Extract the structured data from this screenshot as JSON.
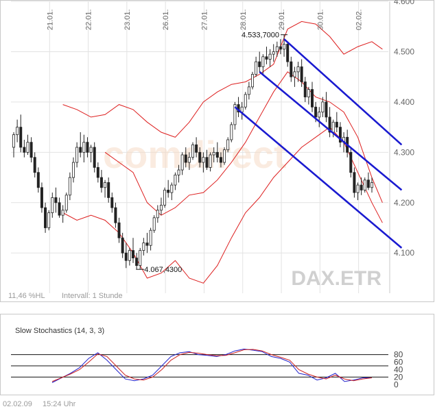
{
  "chart_data": [
    {
      "type": "candlestick",
      "symbol_watermark": "DAX.ETR",
      "brand_watermark": "comdirect",
      "x_tick_labels": [
        "21.01.",
        "22.01.",
        "23.01.",
        "26.01.",
        "27.01.",
        "28.01.",
        "29.01.",
        "30.01.",
        "02.02."
      ],
      "y_tick_labels": [
        "4.600",
        "4.500",
        "4.400",
        "4.300",
        "4.200",
        "4.100"
      ],
      "ylim": [
        4020,
        4600
      ],
      "high_annotation": {
        "label": "4.533,7000",
        "value": 4533.7,
        "index": 77
      },
      "low_annotation": {
        "label": "4.067,4300",
        "value": 4067.43,
        "index": 36
      },
      "footer_left": "11,46 %HL",
      "footer_interval": "Intervall: 1 Stunde",
      "ohlc": [
        [
          4310,
          4340,
          4290,
          4335
        ],
        [
          4335,
          4365,
          4320,
          4350
        ],
        [
          4350,
          4375,
          4300,
          4310
        ],
        [
          4310,
          4325,
          4290,
          4300
        ],
        [
          4300,
          4335,
          4295,
          4320
        ],
        [
          4320,
          4330,
          4280,
          4290
        ],
        [
          4290,
          4300,
          4250,
          4260
        ],
        [
          4260,
          4270,
          4220,
          4230
        ],
        [
          4230,
          4240,
          4180,
          4190
        ],
        [
          4190,
          4200,
          4140,
          4150
        ],
        [
          4150,
          4185,
          4145,
          4180
        ],
        [
          4180,
          4220,
          4170,
          4210
        ],
        [
          4210,
          4230,
          4180,
          4200
        ],
        [
          4200,
          4210,
          4170,
          4175
        ],
        [
          4175,
          4195,
          4160,
          4185
        ],
        [
          4185,
          4220,
          4180,
          4215
        ],
        [
          4215,
          4260,
          4205,
          4250
        ],
        [
          4250,
          4290,
          4240,
          4280
        ],
        [
          4280,
          4320,
          4270,
          4310
        ],
        [
          4310,
          4340,
          4290,
          4300
        ],
        [
          4300,
          4335,
          4280,
          4320
        ],
        [
          4320,
          4330,
          4290,
          4300
        ],
        [
          4300,
          4315,
          4280,
          4310
        ],
        [
          4310,
          4320,
          4260,
          4270
        ],
        [
          4270,
          4280,
          4240,
          4250
        ],
        [
          4250,
          4265,
          4220,
          4230
        ],
        [
          4230,
          4245,
          4210,
          4240
        ],
        [
          4240,
          4250,
          4200,
          4210
        ],
        [
          4210,
          4220,
          4180,
          4190
        ],
        [
          4190,
          4200,
          4150,
          4160
        ],
        [
          4160,
          4170,
          4120,
          4130
        ],
        [
          4130,
          4140,
          4090,
          4100
        ],
        [
          4100,
          4120,
          4070,
          4085
        ],
        [
          4085,
          4110,
          4075,
          4105
        ],
        [
          4105,
          4130,
          4080,
          4090
        ],
        [
          4090,
          4100,
          4068,
          4075
        ],
        [
          4075,
          4110,
          4067,
          4105
        ],
        [
          4105,
          4130,
          4095,
          4120
        ],
        [
          4120,
          4140,
          4100,
          4115
        ],
        [
          4115,
          4150,
          4105,
          4145
        ],
        [
          4145,
          4175,
          4140,
          4170
        ],
        [
          4170,
          4195,
          4160,
          4185
        ],
        [
          4185,
          4210,
          4175,
          4195
        ],
        [
          4195,
          4230,
          4190,
          4225
        ],
        [
          4225,
          4245,
          4210,
          4220
        ],
        [
          4220,
          4240,
          4205,
          4235
        ],
        [
          4235,
          4260,
          4225,
          4255
        ],
        [
          4255,
          4275,
          4240,
          4265
        ],
        [
          4265,
          4300,
          4255,
          4295
        ],
        [
          4295,
          4310,
          4270,
          4280
        ],
        [
          4280,
          4300,
          4265,
          4290
        ],
        [
          4290,
          4320,
          4285,
          4315
        ],
        [
          4315,
          4330,
          4290,
          4300
        ],
        [
          4300,
          4310,
          4270,
          4280
        ],
        [
          4280,
          4300,
          4260,
          4290
        ],
        [
          4290,
          4305,
          4265,
          4270
        ],
        [
          4270,
          4300,
          4262,
          4295
        ],
        [
          4295,
          4310,
          4280,
          4300
        ],
        [
          4300,
          4320,
          4280,
          4290
        ],
        [
          4290,
          4300,
          4270,
          4280
        ],
        [
          4280,
          4310,
          4275,
          4305
        ],
        [
          4305,
          4330,
          4300,
          4325
        ],
        [
          4325,
          4360,
          4320,
          4355
        ],
        [
          4355,
          4400,
          4345,
          4395
        ],
        [
          4395,
          4410,
          4370,
          4380
        ],
        [
          4380,
          4400,
          4365,
          4390
        ],
        [
          4390,
          4420,
          4385,
          4415
        ],
        [
          4415,
          4440,
          4405,
          4430
        ],
        [
          4430,
          4460,
          4425,
          4455
        ],
        [
          4455,
          4490,
          4450,
          4480
        ],
        [
          4480,
          4500,
          4460,
          4470
        ],
        [
          4470,
          4495,
          4455,
          4490
        ],
        [
          4490,
          4510,
          4475,
          4485
        ],
        [
          4485,
          4505,
          4470,
          4495
        ],
        [
          4495,
          4515,
          4480,
          4500
        ],
        [
          4500,
          4520,
          4490,
          4510
        ],
        [
          4510,
          4525,
          4495,
          4505
        ],
        [
          4505,
          4533.7,
          4490,
          4515
        ],
        [
          4515,
          4520,
          4470,
          4480
        ],
        [
          4480,
          4490,
          4440,
          4450
        ],
        [
          4450,
          4470,
          4430,
          4460
        ],
        [
          4460,
          4480,
          4440,
          4470
        ],
        [
          4470,
          4485,
          4430,
          4440
        ],
        [
          4440,
          4450,
          4400,
          4410
        ],
        [
          4410,
          4430,
          4395,
          4425
        ],
        [
          4425,
          4440,
          4380,
          4390
        ],
        [
          4390,
          4400,
          4360,
          4370
        ],
        [
          4370,
          4390,
          4350,
          4380
        ],
        [
          4380,
          4410,
          4370,
          4400
        ],
        [
          4400,
          4420,
          4360,
          4370
        ],
        [
          4370,
          4390,
          4330,
          4340
        ],
        [
          4340,
          4365,
          4330,
          4360
        ],
        [
          4360,
          4380,
          4340,
          4350
        ],
        [
          4350,
          4360,
          4310,
          4320
        ],
        [
          4320,
          4340,
          4300,
          4330
        ],
        [
          4330,
          4345,
          4290,
          4300
        ],
        [
          4300,
          4310,
          4250,
          4260
        ],
        [
          4260,
          4270,
          4210,
          4220
        ],
        [
          4220,
          4240,
          4205,
          4235
        ],
        [
          4235,
          4250,
          4215,
          4225
        ],
        [
          4225,
          4250,
          4220,
          4245
        ],
        [
          4245,
          4260,
          4225,
          4230
        ],
        [
          4230,
          4250,
          4220,
          4240
        ]
      ],
      "bollinger_upper": [
        [
          14,
          4395
        ],
        [
          18,
          4385
        ],
        [
          22,
          4370
        ],
        [
          26,
          4375
        ],
        [
          30,
          4395
        ],
        [
          34,
          4385
        ],
        [
          38,
          4360
        ],
        [
          42,
          4340
        ],
        [
          46,
          4330
        ],
        [
          50,
          4360
        ],
        [
          54,
          4400
        ],
        [
          58,
          4420
        ],
        [
          62,
          4435
        ],
        [
          66,
          4440
        ],
        [
          70,
          4455
        ],
        [
          74,
          4475
        ],
        [
          78,
          4545
        ],
        [
          82,
          4560
        ],
        [
          86,
          4555
        ],
        [
          90,
          4530
        ],
        [
          94,
          4495
        ],
        [
          98,
          4510
        ],
        [
          102,
          4520
        ],
        [
          105,
          4505
        ]
      ],
      "bollinger_lower": [
        [
          14,
          4180
        ],
        [
          18,
          4165
        ],
        [
          22,
          4175
        ],
        [
          26,
          4165
        ],
        [
          30,
          4140
        ],
        [
          34,
          4100
        ],
        [
          38,
          4050
        ],
        [
          42,
          4060
        ],
        [
          46,
          4085
        ],
        [
          50,
          4050
        ],
        [
          54,
          4040
        ],
        [
          58,
          4075
        ],
        [
          62,
          4130
        ],
        [
          66,
          4180
        ],
        [
          70,
          4210
        ],
        [
          74,
          4250
        ],
        [
          78,
          4280
        ],
        [
          82,
          4310
        ],
        [
          86,
          4330
        ],
        [
          90,
          4350
        ],
        [
          94,
          4320
        ],
        [
          98,
          4260
        ],
        [
          102,
          4200
        ],
        [
          105,
          4160
        ]
      ],
      "bollinger_middle": [
        [
          26,
          4300
        ],
        [
          30,
          4280
        ],
        [
          34,
          4260
        ],
        [
          38,
          4200
        ],
        [
          42,
          4175
        ],
        [
          46,
          4190
        ],
        [
          50,
          4215
        ],
        [
          54,
          4220
        ],
        [
          58,
          4245
        ],
        [
          62,
          4280
        ],
        [
          66,
          4320
        ],
        [
          70,
          4370
        ],
        [
          74,
          4420
        ],
        [
          78,
          4460
        ],
        [
          82,
          4440
        ],
        [
          86,
          4410
        ],
        [
          90,
          4400
        ],
        [
          94,
          4380
        ],
        [
          98,
          4330
        ],
        [
          102,
          4250
        ],
        [
          105,
          4200
        ]
      ],
      "trend_channel": [
        {
          "from": [
            63,
            4390
          ],
          "to": [
            105,
            4110
          ]
        },
        {
          "from": [
            70,
            4460
          ],
          "to": [
            105,
            4225
          ]
        },
        {
          "from": [
            77,
            4525
          ],
          "to": [
            105,
            4315
          ]
        }
      ]
    },
    {
      "type": "line",
      "title": "Slow Stochastics (14, 3, 3)",
      "y_tick_labels": [
        "80",
        "60",
        "40",
        "20",
        "0"
      ],
      "ylim": [
        -5,
        105
      ],
      "reference_lines": [
        80,
        50,
        20
      ],
      "series": [
        {
          "color": "#2020cc",
          "points": [
            [
              12,
              5
            ],
            [
              20,
              30
            ],
            [
              24,
              45
            ],
            [
              28,
              70
            ],
            [
              32,
              85
            ],
            [
              36,
              65
            ],
            [
              40,
              40
            ],
            [
              44,
              15
            ],
            [
              48,
              10
            ],
            [
              52,
              15
            ],
            [
              56,
              25
            ],
            [
              60,
              50
            ],
            [
              64,
              75
            ],
            [
              68,
              85
            ],
            [
              72,
              88
            ],
            [
              76,
              80
            ],
            [
              80,
              78
            ],
            [
              84,
              75
            ],
            [
              88,
              80
            ],
            [
              92,
              90
            ],
            [
              96,
              95
            ],
            [
              100,
              92
            ],
            [
              104,
              88
            ],
            [
              108,
              75
            ],
            [
              112,
              70
            ],
            [
              116,
              60
            ],
            [
              120,
              30
            ],
            [
              124,
              25
            ],
            [
              128,
              12
            ],
            [
              132,
              18
            ],
            [
              136,
              30
            ],
            [
              140,
              8
            ],
            [
              144,
              12
            ],
            [
              148,
              18
            ],
            [
              152,
              18
            ]
          ]
        },
        {
          "color": "#cc2020",
          "points": [
            [
              12,
              8
            ],
            [
              20,
              28
            ],
            [
              24,
              40
            ],
            [
              28,
              60
            ],
            [
              32,
              82
            ],
            [
              36,
              75
            ],
            [
              40,
              50
            ],
            [
              44,
              25
            ],
            [
              48,
              15
            ],
            [
              52,
              12
            ],
            [
              56,
              20
            ],
            [
              60,
              40
            ],
            [
              64,
              65
            ],
            [
              68,
              80
            ],
            [
              72,
              86
            ],
            [
              76,
              84
            ],
            [
              80,
              80
            ],
            [
              84,
              77
            ],
            [
              88,
              78
            ],
            [
              92,
              85
            ],
            [
              96,
              93
            ],
            [
              100,
              94
            ],
            [
              104,
              90
            ],
            [
              108,
              80
            ],
            [
              112,
              73
            ],
            [
              116,
              65
            ],
            [
              120,
              40
            ],
            [
              124,
              28
            ],
            [
              128,
              20
            ],
            [
              132,
              15
            ],
            [
              136,
              25
            ],
            [
              140,
              15
            ],
            [
              144,
              10
            ],
            [
              148,
              15
            ],
            [
              152,
              18
            ]
          ]
        }
      ]
    }
  ],
  "footer": {
    "date": "02.02.09",
    "time": "15:24 Uhr"
  }
}
